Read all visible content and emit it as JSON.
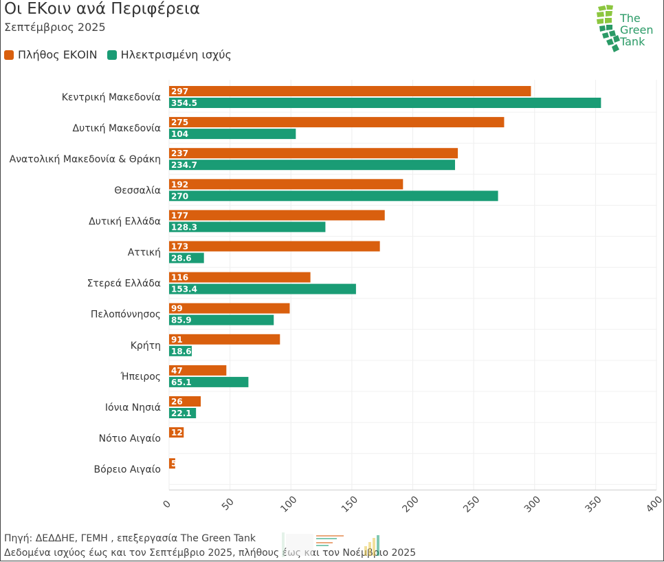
{
  "header": {
    "title": "Οι ΕΚοιν ανά Περιφέρεια",
    "subtitle": "Σεπτέμβριος 2025"
  },
  "logo": {
    "line1": "The",
    "line2": "Green",
    "line3": "Tank",
    "color": "#2a9a66"
  },
  "footer": {
    "source": "Πηγή: ΔΕΔΔΗΕ, ΓΕΜΗ , επεξεργασία The Green Tank",
    "note": "Δεδομένα ισχύος έως και τον Σεπτέμβριο 2025, πλήθους έως και τον Νοέμβριο 2025"
  },
  "chart_data": {
    "type": "bar",
    "orientation": "horizontal",
    "title": "Οι ΕΚοιν ανά Περιφέρεια",
    "subtitle": "Σεπτέμβριος 2025",
    "categories": [
      "Κεντρική Μακεδονία",
      "Δυτική Μακεδονία",
      "Ανατολική Μακεδονία & Θράκη",
      "Θεσσαλία",
      "Δυτική Ελλάδα",
      "Αττική",
      "Στερεά Ελλάδα",
      "Πελοπόννησος",
      "Κρήτη",
      "Ήπειρος",
      "Ιόνια Νησιά",
      "Νότιο Αιγαίο",
      "Βόρειο Αιγαίο"
    ],
    "series": [
      {
        "name": "Πλήθος ΕΚΟΙΝ",
        "color": "#d95f0e",
        "values": [
          297,
          275,
          237,
          192,
          177,
          173,
          116,
          99,
          91,
          47,
          26,
          12,
          5
        ],
        "labels": [
          "297",
          "275",
          "237",
          "192",
          "177",
          "173",
          "116",
          "99",
          "91",
          "47",
          "26",
          "12",
          "5"
        ]
      },
      {
        "name": "Ηλεκτρισμένη ισχύς",
        "color": "#1a9c75",
        "values": [
          354.5,
          104,
          234.7,
          270,
          128.3,
          28.6,
          153.4,
          85.9,
          18.6,
          65.1,
          22.1,
          null,
          null
        ],
        "labels": [
          "354.5",
          "104",
          "234.7",
          "270",
          "128.3",
          "28.6",
          "153.4",
          "85.9",
          "18.6",
          "65.1",
          "22.1",
          "",
          ""
        ]
      }
    ],
    "xlim": [
      0,
      400
    ],
    "xticks": [
      "0",
      "50",
      "100",
      "150",
      "200",
      "250",
      "300",
      "350",
      "400"
    ],
    "grid": true,
    "legend": "top-left"
  }
}
